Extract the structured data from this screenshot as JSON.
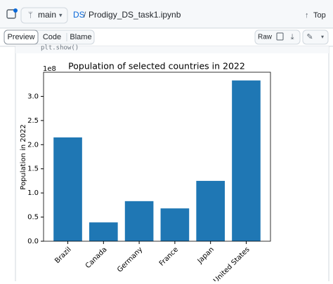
{
  "header": {
    "branch": "main",
    "path_root": "DS",
    "separator": "/",
    "file": "Prodigy_DS_task1.ipynb",
    "top": "Top"
  },
  "tabs": [
    "Preview",
    "Code",
    "Blame"
  ],
  "actions": {
    "raw": "Raw"
  },
  "code": "plt.show()",
  "chart_data": {
    "type": "bar",
    "title": "Population of selected countries in 2022",
    "y_label": "Population in 2022",
    "y_offset": "1e8",
    "categories": [
      "Brazil",
      "Canada",
      "Germany",
      "France",
      "Japan",
      "United States"
    ],
    "values": [
      2.15,
      0.39,
      0.83,
      0.68,
      1.25,
      3.33
    ],
    "color": "#1f77b4",
    "ylim": [
      0,
      3.5
    ],
    "yticks": [
      {
        "value": 0,
        "label": "0.0"
      },
      {
        "value": 0.5,
        "label": "0.5"
      },
      {
        "value": 1,
        "label": "1.0"
      },
      {
        "value": 1.5,
        "label": "1.5"
      },
      {
        "value": 2,
        "label": "2.0"
      },
      {
        "value": 2.5,
        "label": "2.5"
      },
      {
        "value": 3,
        "label": "3.0"
      }
    ],
    "grid": false
  }
}
